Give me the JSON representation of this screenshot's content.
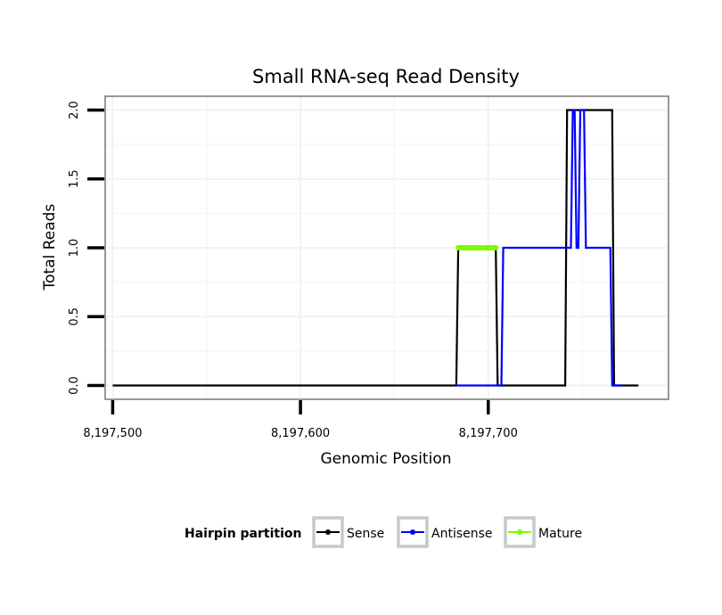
{
  "chart_data": {
    "type": "line",
    "title": "Small RNA-seq Read Density",
    "xlabel": "Genomic Position",
    "ylabel": "Total Reads",
    "xlim": [
      8197496,
      8197796
    ],
    "ylim": [
      -0.1,
      2.1
    ],
    "x_ticks": [
      8197500,
      8197600,
      8197700
    ],
    "x_tick_labels": [
      "8,197,500",
      "8,197,600",
      "8,197,700"
    ],
    "y_ticks": [
      0,
      0.5,
      1,
      1.5,
      2
    ],
    "y_tick_labels": [
      "0.0",
      "0.5",
      "1.0",
      "1.5",
      "2.0"
    ],
    "grid": true,
    "legend": {
      "title": "Hairpin partition",
      "position": "bottom",
      "entries": [
        "Sense",
        "Antisense",
        "Mature"
      ]
    },
    "series": [
      {
        "name": "Sense",
        "color": "#000000",
        "x": [
          8197500,
          8197683,
          8197684,
          8197704,
          8197705,
          8197741,
          8197742,
          8197766,
          8197767,
          8197780
        ],
        "y": [
          0,
          0,
          1,
          1,
          0,
          0,
          2,
          2,
          0,
          0
        ]
      },
      {
        "name": "Antisense",
        "color": "#0000ff",
        "x": [
          8197683,
          8197707,
          8197708,
          8197744,
          8197745,
          8197746,
          8197747,
          8197748,
          8197749,
          8197751,
          8197752,
          8197765,
          8197766,
          8197771
        ],
        "y": [
          0,
          0,
          1,
          1,
          2,
          2,
          1,
          1,
          2,
          2,
          1,
          1,
          0,
          0
        ]
      },
      {
        "name": "Mature",
        "color": "#7cfc00",
        "x": [
          8197684,
          8197704
        ],
        "y": [
          1,
          1
        ]
      }
    ]
  }
}
